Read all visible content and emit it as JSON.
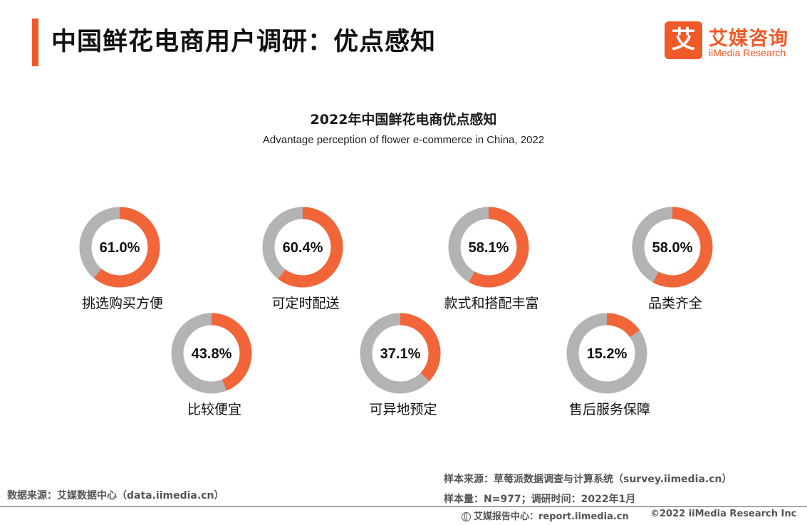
{
  "header": {
    "title": "中国鲜花电商用户调研：优点感知",
    "logo_mark": "艾",
    "logo_cn": "艾媒咨询",
    "logo_en": "iiMedia Research"
  },
  "colors": {
    "accent": "#f05a28",
    "donut_fill": "#f26538",
    "donut_track": "#b3b3b3"
  },
  "chart_data": {
    "type": "donut",
    "title": "2022年中国鲜花电商优点感知",
    "subtitle": "Advantage perception of flower e-commerce in China, 2022",
    "unit": "%",
    "categories": [
      "挑选购买方便",
      "可定时配送",
      "款式和搭配丰富",
      "品类齐全",
      "比较便宜",
      "可异地预定",
      "售后服务保障"
    ],
    "values": [
      61.0,
      60.4,
      58.1,
      58.0,
      43.8,
      37.1,
      15.2
    ],
    "value_labels": [
      "61.0%",
      "60.4%",
      "58.1%",
      "58.0%",
      "43.8%",
      "37.1%",
      "15.2%"
    ]
  },
  "footer": {
    "data_source": "数据来源：艾媒数据中心（data.iimedia.cn）",
    "sample_source": "样本来源：草莓派数据调查与计算系统（survey.iimedia.cn）",
    "sample_size": "样本量：N=977；调研时间：2022年1月",
    "report_center": "艾媒报告中心：report.iimedia.cn",
    "copyright": "©2022 iiMedia Research Inc"
  }
}
